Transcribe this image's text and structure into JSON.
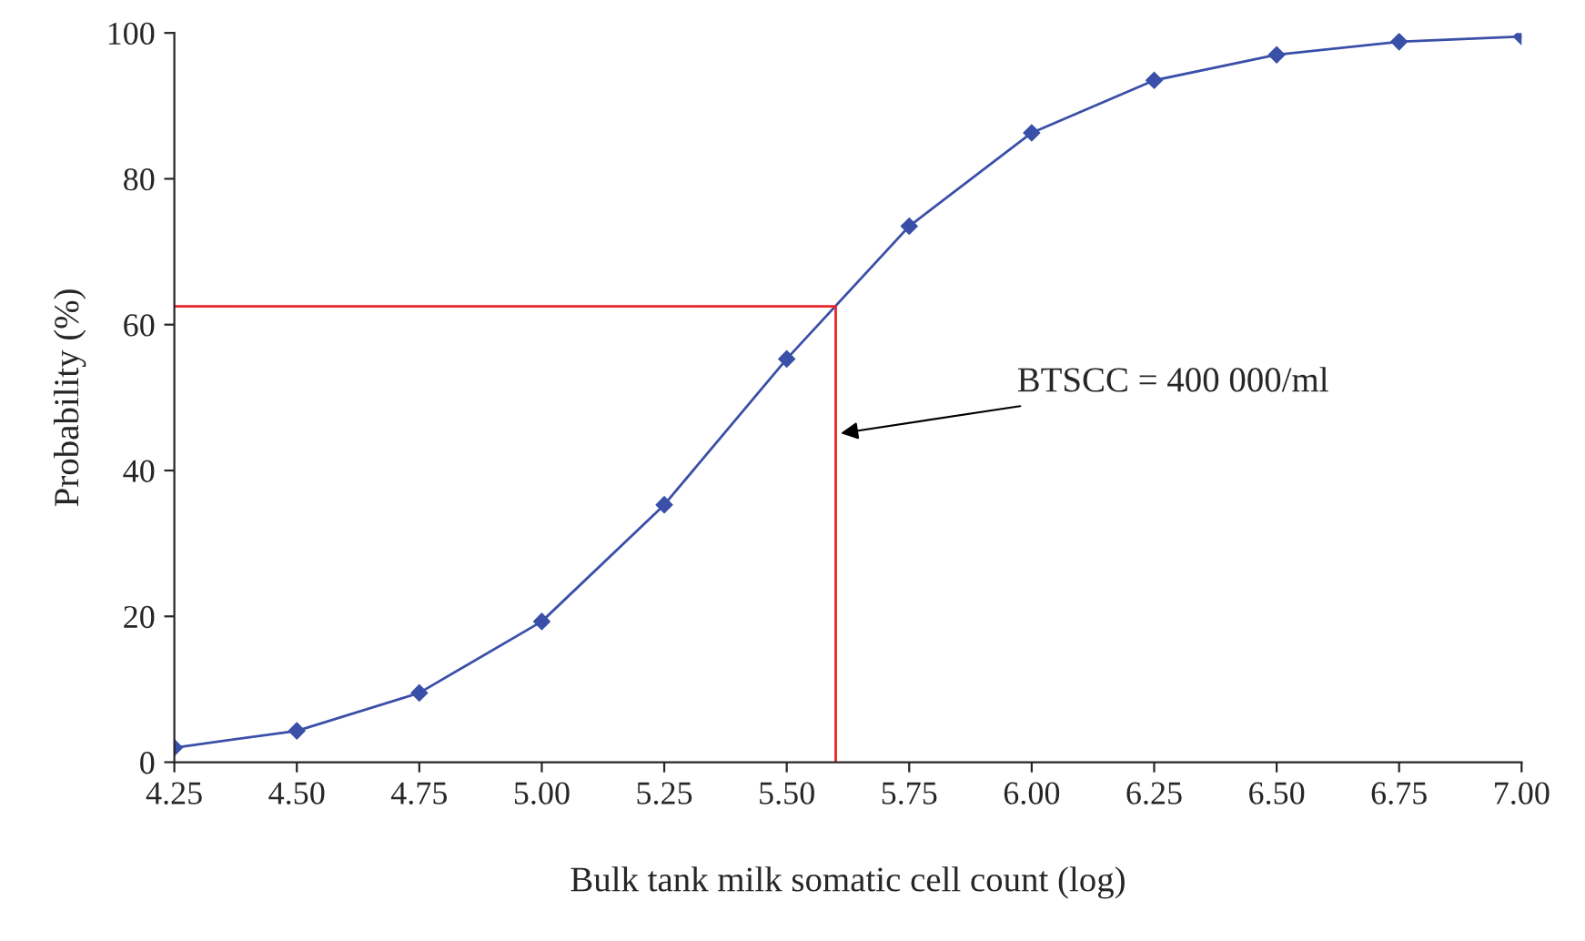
{
  "chart_data": {
    "type": "line",
    "xlabel": "Bulk tank milk somatic cell count (log)",
    "ylabel": "Probability (%)",
    "x": [
      4.25,
      4.5,
      4.75,
      5.0,
      5.25,
      5.5,
      5.75,
      6.0,
      6.25,
      6.5,
      6.75,
      7.0
    ],
    "series": [
      {
        "color": "#3a4fa8",
        "values": [
          2,
          4.3,
          9.5,
          19.3,
          35.3,
          55.3,
          73.5,
          86.3,
          93.5,
          97,
          98.8,
          99.5
        ]
      }
    ],
    "xlim": [
      4.25,
      7.0
    ],
    "xticks": [
      {
        "value": 4.25,
        "label": "4.25"
      },
      {
        "value": 4.5,
        "label": "4.50"
      },
      {
        "value": 4.75,
        "label": "4.75"
      },
      {
        "value": 5.0,
        "label": "5.00"
      },
      {
        "value": 5.25,
        "label": "5.25"
      },
      {
        "value": 5.5,
        "label": "5.50"
      },
      {
        "value": 5.75,
        "label": "5.75"
      },
      {
        "value": 6.0,
        "label": "6.00"
      },
      {
        "value": 6.25,
        "label": "6.25"
      },
      {
        "value": 6.5,
        "label": "6.50"
      },
      {
        "value": 6.75,
        "label": "6.75"
      },
      {
        "value": 7.0,
        "label": "7.00"
      }
    ],
    "ylim": [
      0,
      100
    ],
    "yticks": [
      0,
      20,
      40,
      60,
      80,
      100
    ],
    "ref_lines": [
      {
        "axis": "y",
        "value": 62.5,
        "color": "#e8242a"
      },
      {
        "axis": "x",
        "value": 5.6,
        "color": "#e8242a"
      }
    ],
    "annotations": [
      {
        "text": "BTSCC = 400 000/ml",
        "x": 5.6,
        "y": 45
      }
    ],
    "marker": "diamond",
    "line_style": "solid",
    "grid": false,
    "legend": false
  }
}
